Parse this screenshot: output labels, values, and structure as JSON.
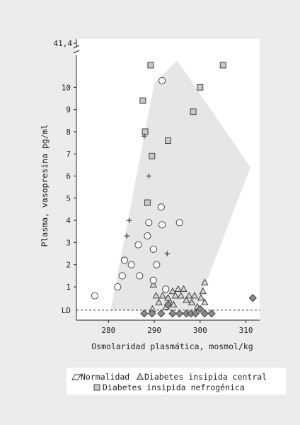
{
  "chart_data": {
    "type": "scatter",
    "xlabel": "Osmolaridad plasmática, mosmol/kg",
    "ylabel": "Plasma, vasopresina pg/ml",
    "xlim": [
      273,
      313
    ],
    "ylim": [
      -0.5,
      11
    ],
    "x_ticks": [
      280,
      290,
      300,
      310
    ],
    "y_ticks": [
      1,
      2,
      3,
      4,
      5,
      6,
      7,
      8,
      9,
      10
    ],
    "y_tick_labels": [
      "1",
      "2",
      "3",
      "4",
      "5",
      "6",
      "7",
      "8",
      "9",
      "10"
    ],
    "y_break_label": "41,4",
    "ld_label": "LD",
    "ld_value": -0.05,
    "legend_placement": "bottom",
    "legend": {
      "normalidad": "Normalidad",
      "central": "Diabetes insipida central",
      "nefrogenica": "Diabetes insipida nefrogénica"
    },
    "normal_region": [
      [
        280.5,
        -0.05
      ],
      [
        290,
        10.2
      ],
      [
        295,
        11.2
      ],
      [
        311,
        6.4
      ],
      [
        299,
        -0.05
      ]
    ],
    "colors": {
      "background": "#ececec",
      "plot_bg": "#ffffff",
      "region": "#e6e6e6",
      "square": "#c8c8c8",
      "diamond": "#8a8a8a"
    },
    "series": [
      {
        "name": "Normalidad",
        "marker": "circle",
        "points": [
          [
            277,
            0.6
          ],
          [
            282,
            1.0
          ],
          [
            283,
            1.5
          ],
          [
            283.5,
            2.2
          ],
          [
            285,
            2.0
          ],
          [
            286.5,
            2.9
          ],
          [
            286.8,
            1.5
          ],
          [
            288.5,
            3.3
          ],
          [
            288.8,
            3.9
          ],
          [
            289.8,
            2.7
          ],
          [
            289.8,
            1.3
          ],
          [
            290.5,
            2.0
          ],
          [
            291.5,
            4.6
          ],
          [
            291.7,
            3.8
          ],
          [
            292.5,
            0.9
          ],
          [
            295.5,
            3.9
          ],
          [
            291.7,
            10.3
          ]
        ]
      },
      {
        "name": "Diabetes insipida central",
        "marker": "triangle",
        "points": [
          [
            289.6,
            0.0
          ],
          [
            289.8,
            1.1
          ],
          [
            290.4,
            0.6
          ],
          [
            291,
            0.3
          ],
          [
            291.8,
            0.6
          ],
          [
            292.6,
            0.1
          ],
          [
            293.4,
            0.3
          ],
          [
            294,
            0.8
          ],
          [
            294.6,
            0.6
          ],
          [
            295.2,
            0.9
          ],
          [
            295.8,
            0.6
          ],
          [
            296.4,
            0.9
          ],
          [
            297,
            0.4
          ],
          [
            297.6,
            0.6
          ],
          [
            298.2,
            0.3
          ],
          [
            298.8,
            0.6
          ],
          [
            299.4,
            0.1
          ],
          [
            300.2,
            0.5
          ],
          [
            300.6,
            0.8
          ],
          [
            301,
            0.3
          ],
          [
            301,
            1.2
          ],
          [
            293,
            0.5
          ],
          [
            294.2,
            0.2
          ]
        ]
      },
      {
        "name": "Diabetes insipida nefrogénica",
        "marker": "square",
        "points": [
          [
            287.5,
            9.4
          ],
          [
            288,
            8.0
          ],
          [
            288.5,
            4.8
          ],
          [
            289.2,
            11.0
          ],
          [
            289.5,
            6.9
          ],
          [
            293,
            7.6
          ],
          [
            298.5,
            8.9
          ],
          [
            300,
            10.0
          ],
          [
            305,
            11.0
          ]
        ]
      },
      {
        "name": "plus",
        "marker": "plus",
        "points": [
          [
            287.8,
            7.8
          ],
          [
            288.8,
            6.0
          ],
          [
            284.5,
            4.0
          ],
          [
            284,
            3.3
          ],
          [
            292.8,
            2.5
          ]
        ]
      },
      {
        "name": "diamond",
        "marker": "diamond",
        "points": [
          [
            287.8,
            -0.2
          ],
          [
            289.5,
            -0.2
          ],
          [
            291.5,
            -0.2
          ],
          [
            293,
            0.2
          ],
          [
            294,
            -0.2
          ],
          [
            295.5,
            -0.2
          ],
          [
            297,
            -0.2
          ],
          [
            298,
            -0.2
          ],
          [
            299,
            -0.2
          ],
          [
            300,
            0.0
          ],
          [
            301,
            -0.2
          ],
          [
            302.5,
            -0.2
          ],
          [
            311.5,
            0.5
          ]
        ]
      }
    ]
  }
}
